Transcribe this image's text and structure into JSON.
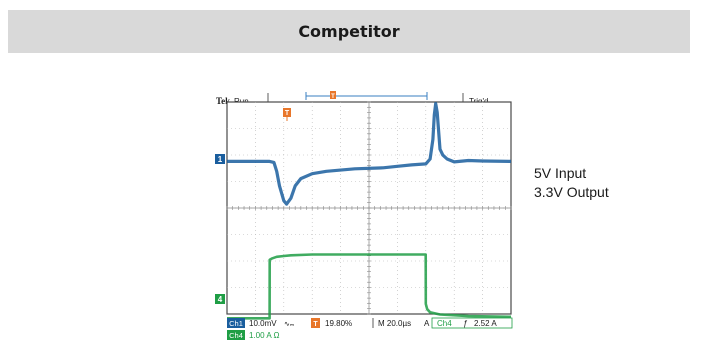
{
  "header": {
    "title": "Competitor"
  },
  "scope": {
    "brand": "Tek",
    "run_state": "Run",
    "trig_state": "Trig'd",
    "trigger_marker": "T",
    "ch1_marker": "1",
    "ch4_marker": "4",
    "readouts": {
      "ch1_tag": "Ch1",
      "ch1_value": "10.0mV",
      "ch1_coupling": "∿ₘ",
      "trig_position": "19.80%",
      "timebase": "M 20.0µs",
      "trigger_mode": "A",
      "trigger_source": "Ch4",
      "trigger_slope": "ƒ",
      "trigger_level": "2.52 A",
      "ch4_tag": "Ch4",
      "ch4_value": "1.00 A Ω"
    }
  },
  "labels": {
    "input": "5V Input",
    "output": "3.3V Output"
  },
  "chart_data": {
    "type": "line",
    "title": "",
    "xlabel": "",
    "ylabel": "",
    "x_unit": "µs",
    "xlim": [
      -40,
      160
    ],
    "grid": true,
    "series": [
      {
        "name": "Ch1",
        "unit": "mV",
        "color": "#1a5e9e",
        "x": [
          -40,
          -10,
          -7,
          -5,
          -3,
          0,
          2,
          5,
          8,
          12,
          20,
          30,
          50,
          70,
          80,
          90,
          100,
          103,
          105,
          106,
          107,
          108,
          110,
          112,
          115,
          120,
          130,
          140,
          160
        ],
        "y": [
          -0.5,
          -0.5,
          -0.7,
          -2.5,
          -5.5,
          -8.5,
          -9.2,
          -8.0,
          -5.5,
          -4.0,
          -3.0,
          -2.5,
          -2.0,
          -1.8,
          -1.5,
          -1.2,
          -1.0,
          0.0,
          4.0,
          9.0,
          11.3,
          9.5,
          2.0,
          0.8,
          0.0,
          -0.6,
          -0.3,
          -0.4,
          -0.5
        ]
      },
      {
        "name": "Ch4",
        "unit": "A",
        "color": "#1f9e45",
        "x": [
          -40,
          -10,
          -9.9,
          -8,
          -5,
          0,
          5,
          20,
          50,
          90,
          99.9,
          100,
          101,
          103,
          110,
          130,
          160
        ],
        "y": [
          -2.95,
          -2.95,
          0.9,
          1.0,
          1.1,
          1.15,
          1.2,
          1.25,
          1.25,
          1.25,
          1.25,
          -2.0,
          -2.35,
          -2.55,
          -2.7,
          -2.8,
          -2.85
        ]
      }
    ]
  }
}
